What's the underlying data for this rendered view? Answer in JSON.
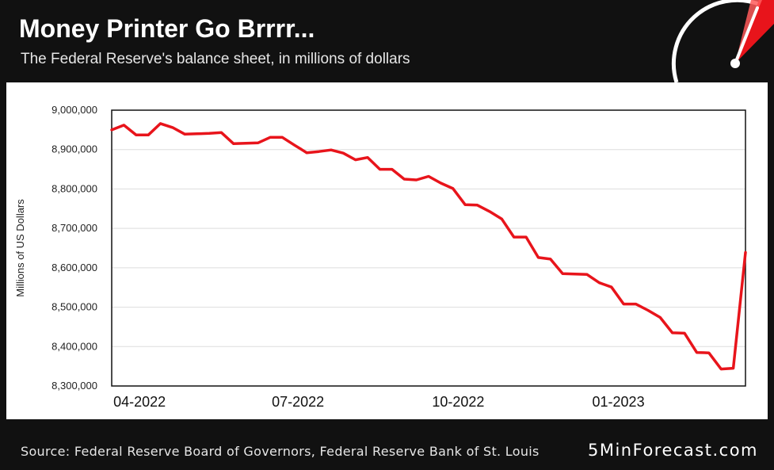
{
  "header": {
    "title": "Money Printer Go Brrrr...",
    "subtitle": "The Federal Reserve's balance sheet, in millions of dollars"
  },
  "footer": {
    "source": "Source: Federal Reserve Board of Governors, Federal Reserve Bank of St. Louis",
    "brand": "5MinForecast.com"
  },
  "icons": {
    "gauge": "speedometer-gauge-icon"
  },
  "colors": {
    "background": "#111111",
    "panel": "#ffffff",
    "line": "#e8141b",
    "gauge_red": "#e8141b",
    "grid": "#dddddd"
  },
  "chart_data": {
    "type": "line",
    "title": "Money Printer Go Brrrr...",
    "subtitle": "The Federal Reserve's balance sheet, in millions of dollars",
    "xlabel": "",
    "ylabel": "Millions of US Dollars",
    "ylim": [
      8300000,
      9000000
    ],
    "yticks": [
      8300000,
      8400000,
      8500000,
      8600000,
      8700000,
      8800000,
      8900000,
      9000000
    ],
    "ytick_labels": [
      "8,300,000",
      "8,400,000",
      "8,500,000",
      "8,600,000",
      "8,700,000",
      "8,800,000",
      "8,900,000",
      "9,000,000"
    ],
    "xlim": [
      "2022-03-16",
      "2023-03-15"
    ],
    "xticks": [
      "2022-04-01",
      "2022-07-01",
      "2022-10-01",
      "2023-01-01"
    ],
    "xtick_labels": [
      "04-2022",
      "07-2022",
      "10-2022",
      "01-2023"
    ],
    "grid": true,
    "series": [
      {
        "color": "#e8141b",
        "x": [
          "2022-03-16",
          "2022-03-23",
          "2022-03-30",
          "2022-04-06",
          "2022-04-13",
          "2022-04-20",
          "2022-04-27",
          "2022-05-04",
          "2022-05-11",
          "2022-05-18",
          "2022-05-25",
          "2022-06-01",
          "2022-06-08",
          "2022-06-15",
          "2022-06-22",
          "2022-06-29",
          "2022-07-06",
          "2022-07-13",
          "2022-07-20",
          "2022-07-27",
          "2022-08-03",
          "2022-08-10",
          "2022-08-17",
          "2022-08-24",
          "2022-08-31",
          "2022-09-07",
          "2022-09-14",
          "2022-09-21",
          "2022-09-28",
          "2022-10-05",
          "2022-10-12",
          "2022-10-19",
          "2022-10-26",
          "2022-11-02",
          "2022-11-09",
          "2022-11-16",
          "2022-11-23",
          "2022-11-30",
          "2022-12-07",
          "2022-12-14",
          "2022-12-21",
          "2022-12-28",
          "2023-01-04",
          "2023-01-11",
          "2023-01-18",
          "2023-01-25",
          "2023-02-01",
          "2023-02-08",
          "2023-02-15",
          "2023-02-22",
          "2023-03-01",
          "2023-03-08",
          "2023-03-15"
        ],
        "values": [
          8950000,
          8962000,
          8937000,
          8937000,
          8966000,
          8956000,
          8939000,
          8940000,
          8941000,
          8943000,
          8915000,
          8916000,
          8917000,
          8931000,
          8931000,
          8911000,
          8892000,
          8895000,
          8899000,
          8891000,
          8874000,
          8880000,
          8850000,
          8850000,
          8825000,
          8823000,
          8832000,
          8815000,
          8801000,
          8760000,
          8759000,
          8743000,
          8724000,
          8678000,
          8678000,
          8626000,
          8622000,
          8585000,
          8584000,
          8583000,
          8562000,
          8551000,
          8508000,
          8508000,
          8492000,
          8474000,
          8435000,
          8434000,
          8385000,
          8384000,
          8343000,
          8345000,
          8639000
        ]
      }
    ]
  }
}
